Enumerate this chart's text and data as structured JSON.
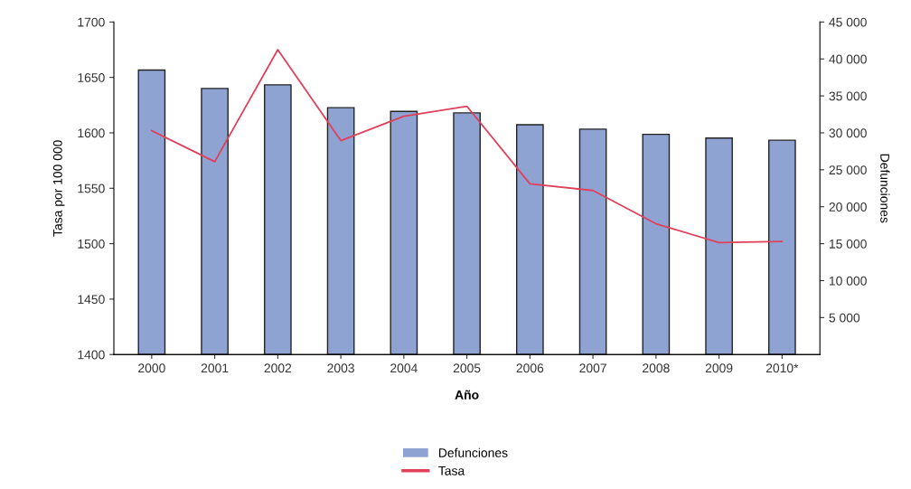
{
  "chart_data": {
    "type": "bar",
    "xlabel": "Año",
    "ylabel": "Tasa por 100 000",
    "y2label": "Defunciones",
    "categories": [
      "2000",
      "2001",
      "2002",
      "2003",
      "2004",
      "2005",
      "2006",
      "2007",
      "2008",
      "2009",
      "2010*"
    ],
    "series": [
      {
        "name": "Defunciones",
        "axis": "y2",
        "color": "#8fa3d3",
        "values": [
          38500,
          36000,
          36500,
          33400,
          32900,
          32700,
          31100,
          30500,
          29800,
          29300,
          29000
        ]
      },
      {
        "name": "Tasa",
        "type": "line",
        "axis": "y",
        "color": "#e0405a",
        "values": [
          1602,
          1574,
          1675,
          1593,
          1615,
          1624,
          1554,
          1548,
          1518,
          1501,
          1502
        ]
      }
    ],
    "ylim": [
      1400,
      1700
    ],
    "yticks": [
      1400,
      1450,
      1500,
      1550,
      1600,
      1650,
      1700
    ],
    "y2lim": [
      0,
      45000
    ],
    "y2ticks": [
      {
        "value": 5000,
        "label": "5 000"
      },
      {
        "value": 10000,
        "label": "10 000"
      },
      {
        "value": 15000,
        "label": "15 000"
      },
      {
        "value": 20000,
        "label": "20 000"
      },
      {
        "value": 25000,
        "label": "25 000"
      },
      {
        "value": 30000,
        "label": "30 000"
      },
      {
        "value": 35000,
        "label": "35 000"
      },
      {
        "value": 40000,
        "label": "40 000"
      },
      {
        "value": 45000,
        "label": "45 000"
      }
    ],
    "grid": false,
    "legend": "bottom",
    "marker": "none",
    "line_style": "solid"
  }
}
